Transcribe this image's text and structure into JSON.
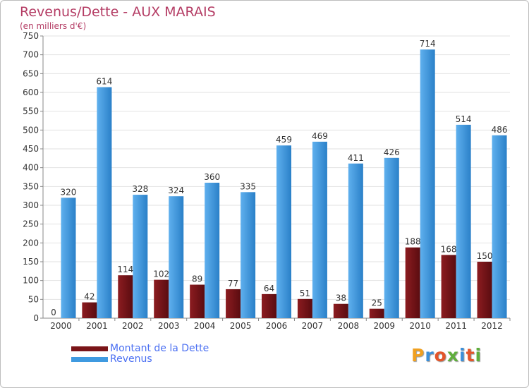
{
  "title": "Revenus/Dette - AUX MARAIS",
  "subtitle": "(en milliers d'€)",
  "logo": "Proxiti",
  "chart_data": {
    "type": "bar",
    "title": "Revenus/Dette - AUX MARAIS",
    "subtitle": "(en milliers d'€)",
    "categories": [
      "2000",
      "2001",
      "2002",
      "2003",
      "2004",
      "2005",
      "2006",
      "2007",
      "2008",
      "2009",
      "2010",
      "2011",
      "2012"
    ],
    "series": [
      {
        "name": "Montant de la Dette",
        "color": "#7a1418",
        "values": [
          0,
          42,
          114,
          102,
          89,
          77,
          64,
          51,
          38,
          25,
          188,
          168,
          150
        ]
      },
      {
        "name": "Revenus",
        "color": "#3f9ae0",
        "values": [
          320,
          614,
          328,
          324,
          360,
          335,
          459,
          469,
          411,
          426,
          714,
          514,
          486
        ]
      }
    ],
    "ylim": [
      0,
      750
    ],
    "yticks": [
      0,
      50,
      100,
      150,
      200,
      250,
      300,
      350,
      400,
      450,
      500,
      550,
      600,
      650,
      700,
      750
    ],
    "grid": true,
    "legend_position": "bottom-left"
  }
}
